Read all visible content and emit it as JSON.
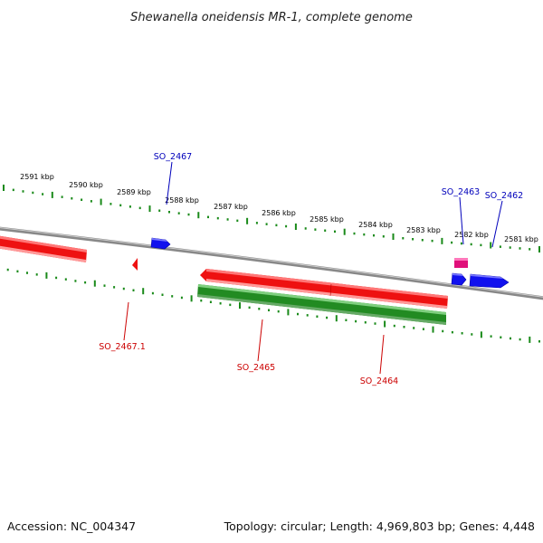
{
  "title": "Shewanella oneidensis MR-1, complete genome",
  "footer": {
    "accession": "Accession: NC_004347",
    "summary": "Topology: circular; Length: 4,969,803 bp; Genes: 4,448"
  },
  "colors": {
    "backbone": "#888888",
    "tick": "#1a8a1a",
    "forward_gene": "#ee1111",
    "reverse_gene": "#228B22",
    "small_gene": "#1111ee",
    "rna": "#e0107a",
    "label_forward": "#0000bb",
    "label_reverse": "#cc0000"
  },
  "ticks": [
    {
      "label": "2591 kbp"
    },
    {
      "label": "2590 kbp"
    },
    {
      "label": "2589 kbp"
    },
    {
      "label": "2588 kbp"
    },
    {
      "label": "2587 kbp"
    },
    {
      "label": "2586 kbp"
    },
    {
      "label": "2585 kbp"
    },
    {
      "label": "2584 kbp"
    },
    {
      "label": "2583 kbp"
    },
    {
      "label": "2582 kbp"
    },
    {
      "label": "2581 kbp"
    }
  ],
  "genes": [
    {
      "label": "SO_2467"
    },
    {
      "label": "SO_2463"
    },
    {
      "label": "SO_2462"
    },
    {
      "label": "SO_2467.1"
    },
    {
      "label": "SO_2465"
    },
    {
      "label": "SO_2464"
    }
  ]
}
